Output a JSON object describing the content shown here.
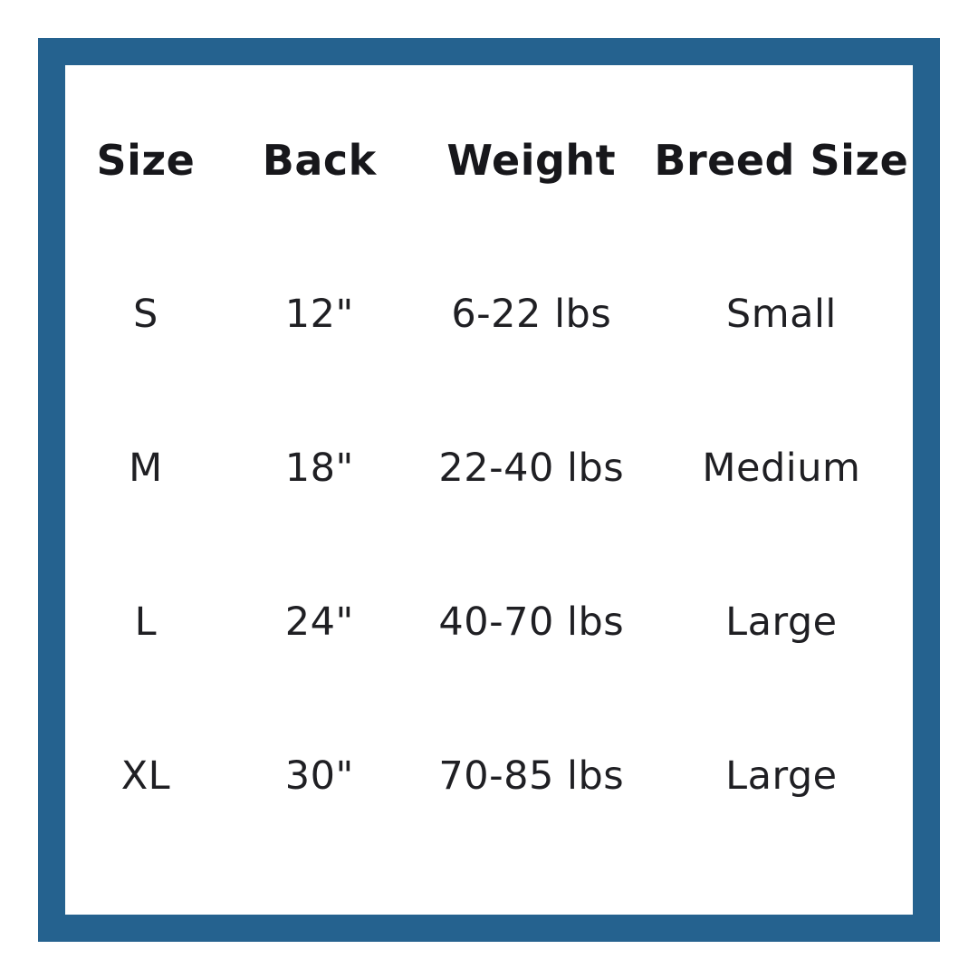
{
  "colors": {
    "frame_border": "#25628F",
    "background": "#FFFFFF",
    "header_text": "#17171B",
    "body_text": "#1F1F23"
  },
  "table": {
    "headers": [
      "Size",
      "Back",
      "Weight",
      "Breed Size"
    ],
    "rows": [
      [
        "S",
        "12\"",
        "6-22 lbs",
        "Small"
      ],
      [
        "M",
        "18\"",
        "22-40 lbs",
        "Medium"
      ],
      [
        "L",
        "24\"",
        "40-70 lbs",
        "Large"
      ],
      [
        "XL",
        "30\"",
        "70-85 lbs",
        "Large"
      ]
    ]
  },
  "chart_data": {
    "type": "table",
    "title": "",
    "columns": [
      "Size",
      "Back",
      "Weight",
      "Breed Size"
    ],
    "rows": [
      {
        "size": "S",
        "back": "12\"",
        "weight": "6-22 lbs",
        "breed_size": "Small"
      },
      {
        "size": "M",
        "back": "18\"",
        "weight": "22-40 lbs",
        "breed_size": "Medium"
      },
      {
        "size": "L",
        "back": "24\"",
        "weight": "40-70 lbs",
        "breed_size": "Large"
      },
      {
        "size": "XL",
        "back": "30\"",
        "weight": "70-85 lbs",
        "breed_size": "Large"
      }
    ],
    "layout_hints": {
      "frame": "thick solid border",
      "frame_color": "#25628F",
      "header_style": "bold",
      "cell_alignment": "center",
      "gridlines": false
    }
  }
}
